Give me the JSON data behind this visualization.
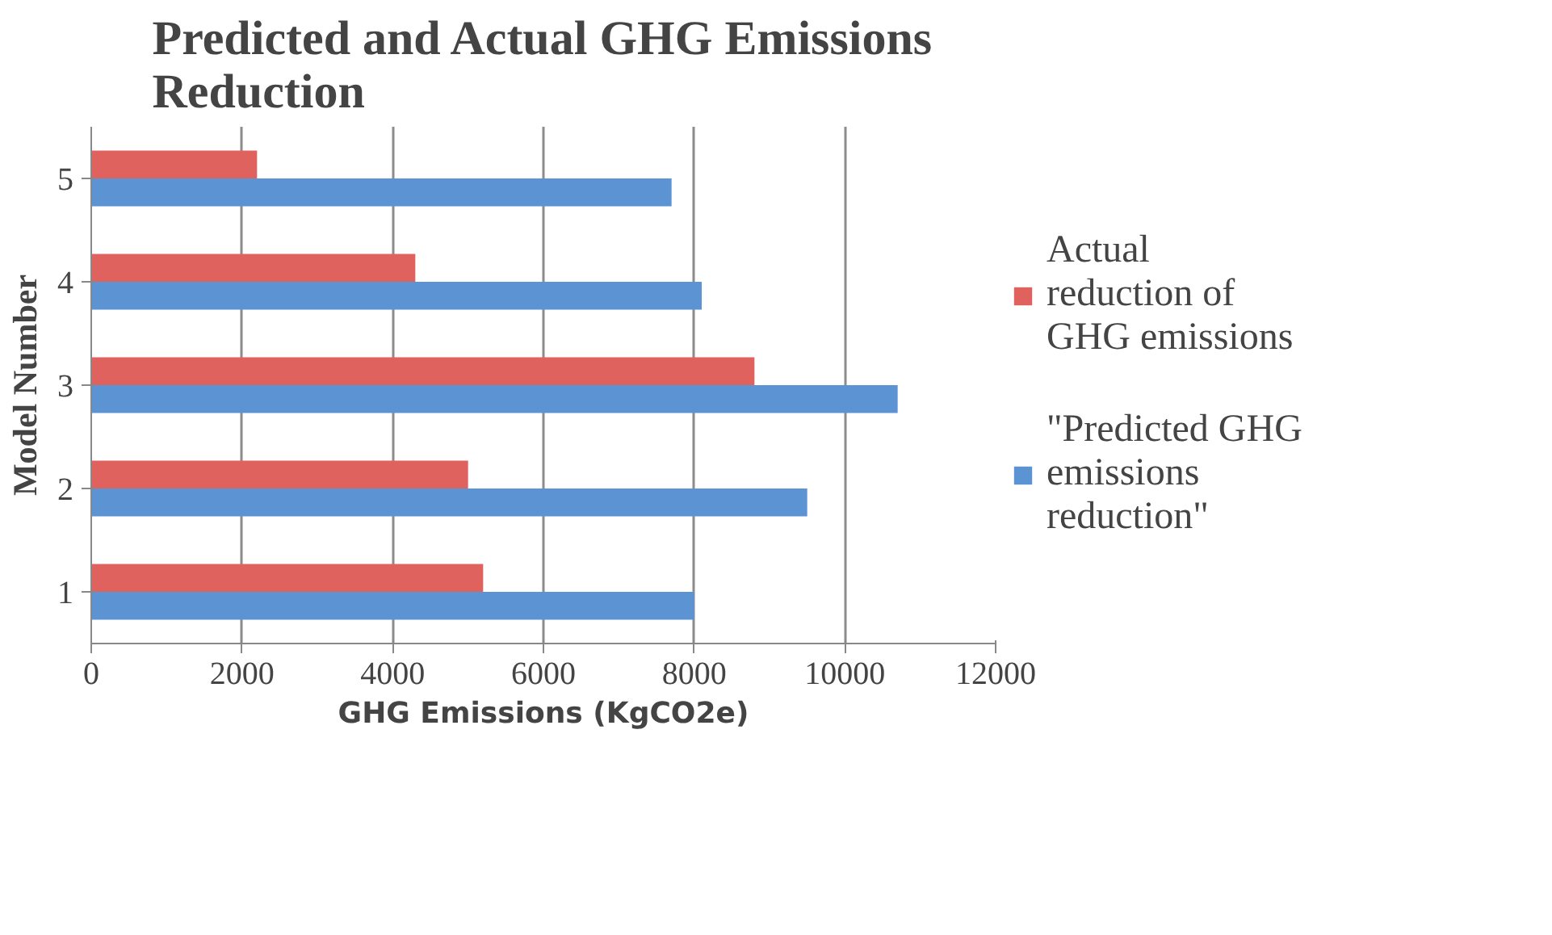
{
  "chart_data": {
    "type": "bar",
    "orientation": "horizontal",
    "title": "Predicted and Actual GHG Emissions Reduction",
    "xlabel": "GHG Emissions (KgCO2e)",
    "ylabel": "Model Number",
    "categories": [
      "5",
      "4",
      "3",
      "2",
      "1"
    ],
    "series": [
      {
        "name": "Actual reduction of GHG emissions",
        "color": "#e0625e",
        "values": [
          2200,
          4300,
          8800,
          5000,
          5200
        ]
      },
      {
        "name": "\"Predicted GHG emissions reduction\"",
        "color": "#5b93d3",
        "values": [
          7700,
          8100,
          10700,
          9500,
          8000
        ]
      }
    ],
    "xlim": [
      0,
      12000
    ],
    "xticks": [
      0,
      2000,
      4000,
      6000,
      8000,
      10000,
      12000
    ],
    "grid": "x",
    "legend": "right"
  }
}
